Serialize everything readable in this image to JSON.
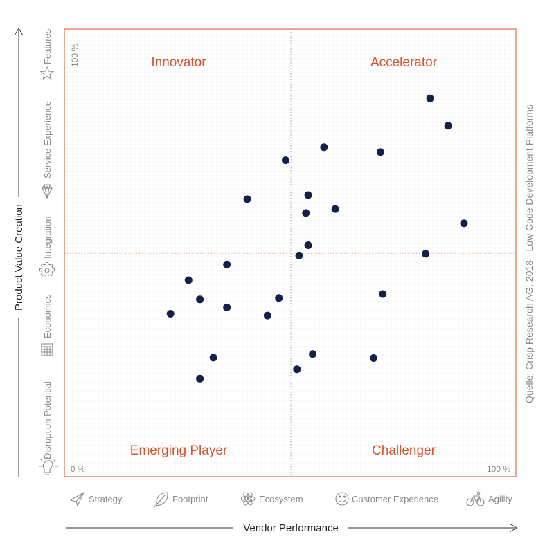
{
  "chart_data": {
    "type": "scatter",
    "xlabel": "Vendor Performance",
    "ylabel": "Product Value Creation",
    "xlim": [
      0,
      100
    ],
    "ylim": [
      0,
      100
    ],
    "x_min_label": "0 %",
    "x_max_label": "100 %",
    "y_max_label": "100 %",
    "grid": true,
    "quadrants": {
      "top_left": "Innovator",
      "top_right": "Accelerator",
      "bottom_left": "Emerging Player",
      "bottom_right": "Challenger"
    },
    "x_categories": [
      "Strategy",
      "Footprint",
      "Ecosystem",
      "Customer Experience",
      "Agility"
    ],
    "y_categories": [
      "Features",
      "Service Experience",
      "Integration",
      "Economics",
      "Disruption Potential"
    ],
    "source": "Quelle: Crisp Research AG, 2018 - Low Code Development Platforms",
    "colors": {
      "accent": "#d9532c",
      "point": "#15204a",
      "axis": "#333333",
      "muted": "#8a8a8a"
    },
    "points": [
      {
        "x": 81.0,
        "y": 84.5
      },
      {
        "x": 85.0,
        "y": 78.4
      },
      {
        "x": 57.5,
        "y": 73.6
      },
      {
        "x": 70.0,
        "y": 72.5
      },
      {
        "x": 49.0,
        "y": 70.7
      },
      {
        "x": 54.0,
        "y": 62.9
      },
      {
        "x": 40.5,
        "y": 62.0
      },
      {
        "x": 60.0,
        "y": 59.8
      },
      {
        "x": 53.5,
        "y": 58.9
      },
      {
        "x": 88.5,
        "y": 56.6
      },
      {
        "x": 54.0,
        "y": 51.7
      },
      {
        "x": 52.0,
        "y": 49.4
      },
      {
        "x": 36.0,
        "y": 47.4
      },
      {
        "x": 80.0,
        "y": 49.8
      },
      {
        "x": 27.5,
        "y": 43.9
      },
      {
        "x": 70.5,
        "y": 40.8
      },
      {
        "x": 30.0,
        "y": 39.6
      },
      {
        "x": 47.5,
        "y": 39.9
      },
      {
        "x": 36.0,
        "y": 37.8
      },
      {
        "x": 23.5,
        "y": 36.4
      },
      {
        "x": 45.0,
        "y": 36.0
      },
      {
        "x": 55.0,
        "y": 27.4
      },
      {
        "x": 33.0,
        "y": 26.6
      },
      {
        "x": 68.5,
        "y": 26.5
      },
      {
        "x": 51.5,
        "y": 24.0
      },
      {
        "x": 30.0,
        "y": 21.9
      }
    ]
  }
}
